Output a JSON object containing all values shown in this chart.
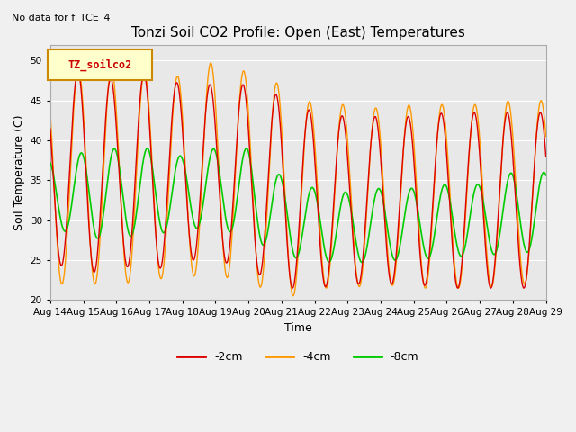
{
  "title": "Tonzi Soil CO2 Profile: Open (East) Temperatures",
  "subtitle": "No data for f_TCE_4",
  "xlabel": "Time",
  "ylabel": "Soil Temperature (C)",
  "ylim": [
    20,
    52
  ],
  "yticks": [
    20,
    25,
    30,
    35,
    40,
    45,
    50
  ],
  "legend_label": "TZ_soilco2",
  "series_labels": [
    "-2cm",
    "-4cm",
    "-8cm"
  ],
  "series_colors": [
    "#dd0000",
    "#ff9900",
    "#00cc00"
  ],
  "background_color": "#e8e8e8",
  "n_days": 15,
  "points_per_day": 96,
  "amp_2cm": [
    11.0,
    13.0,
    11.5,
    12.5,
    11.0,
    11.0,
    11.5,
    12.0,
    11.0,
    10.5,
    10.5,
    10.5,
    11.0,
    11.0,
    11.0
  ],
  "amp_4cm": [
    13.5,
    13.5,
    13.5,
    13.0,
    12.5,
    13.5,
    13.0,
    13.5,
    11.5,
    11.5,
    11.0,
    11.5,
    11.5,
    11.5,
    11.5
  ],
  "amp_8cm": [
    4.0,
    5.5,
    5.5,
    5.5,
    4.5,
    5.0,
    5.5,
    5.0,
    4.5,
    4.5,
    4.5,
    4.5,
    4.5,
    4.5,
    5.0
  ],
  "mean_2cm": [
    36.0,
    36.0,
    36.0,
    36.0,
    36.0,
    36.0,
    35.5,
    33.5,
    32.5,
    32.5,
    32.5,
    32.5,
    32.5,
    32.5,
    32.5
  ],
  "mean_4cm": [
    35.5,
    35.5,
    35.5,
    35.5,
    35.5,
    36.5,
    35.5,
    33.5,
    33.0,
    33.0,
    33.0,
    33.0,
    33.0,
    33.0,
    33.5
  ],
  "mean_8cm": [
    33.5,
    33.0,
    33.5,
    33.5,
    33.5,
    34.0,
    33.5,
    30.5,
    29.5,
    29.0,
    29.5,
    29.5,
    30.0,
    30.0,
    31.0
  ],
  "tick_labels": [
    "Aug 14",
    "Aug 15",
    "Aug 16",
    "Aug 17",
    "Aug 18",
    "Aug 19",
    "Aug 20",
    "Aug 21",
    "Aug 22",
    "Aug 23",
    "Aug 24",
    "Aug 25",
    "Aug 26",
    "Aug 27",
    "Aug 28",
    "Aug 29"
  ]
}
